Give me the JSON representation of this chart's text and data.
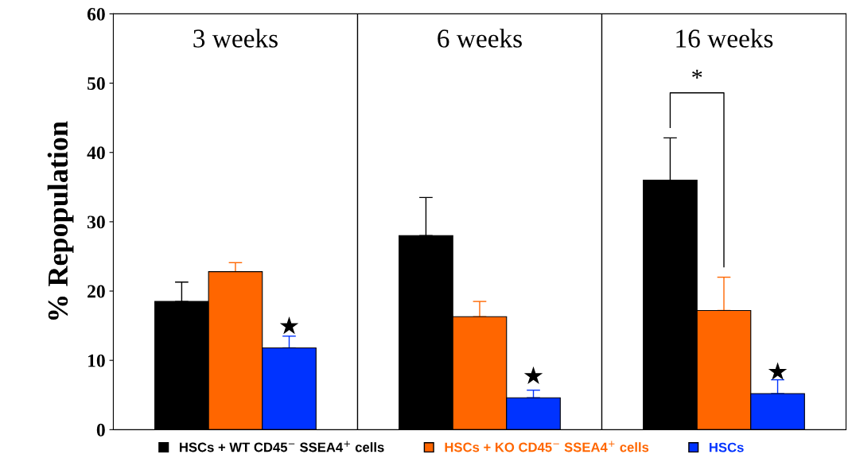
{
  "chart_data": {
    "type": "bar",
    "ylabel": "% Repopulation",
    "categories": [
      "3 weeks",
      "6 weeks",
      "16 weeks"
    ],
    "series": [
      {
        "name": "HSCs + WT CD45$^{−}$ SSEA4$^{+}$ cells",
        "color": "#000000",
        "values": [
          18.5,
          28,
          36
        ],
        "errors": [
          [
            18.5,
            21.3
          ],
          [
            28,
            33.5
          ],
          [
            36,
            42.1
          ]
        ]
      },
      {
        "name": "HSCs + KO CD45$^{−}$ SSEA4$^{+}$ cells",
        "color": "#ff6600",
        "values": [
          22.8,
          16.3,
          17.2
        ],
        "errors": [
          [
            22.8,
            24.1
          ],
          [
            16.3,
            18.5
          ],
          [
            17.2,
            22
          ]
        ]
      },
      {
        "name": "HSCs",
        "color": "#0033ff",
        "values": [
          11.8,
          4.6,
          5.2
        ],
        "errors": [
          [
            11.8,
            13.5
          ],
          [
            4.6,
            5.7
          ],
          [
            5.2,
            7.2
          ]
        ],
        "value_labels": [
          "★",
          "★",
          "★"
        ]
      }
    ],
    "annotations": [
      "*"
    ],
    "ylim": [
      0,
      60
    ],
    "yticks": [
      0,
      10,
      20,
      30,
      40,
      50,
      60
    ],
    "grid": false,
    "legend": "bottom"
  }
}
